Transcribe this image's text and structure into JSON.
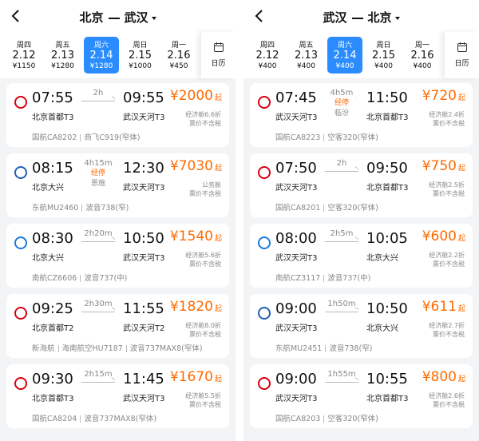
{
  "panels": [
    {
      "route": {
        "from": "北京",
        "to": "武汉"
      },
      "dates": [
        {
          "weekday": "周四",
          "date": "2.12",
          "price": "¥1150"
        },
        {
          "weekday": "周五",
          "date": "2.13",
          "price": "¥1280"
        },
        {
          "weekday": "周六",
          "date": "2.14",
          "price": "¥1280",
          "selected": true
        },
        {
          "weekday": "周日",
          "date": "2.15",
          "price": "¥1000"
        },
        {
          "weekday": "周一",
          "date": "2.16",
          "price": "¥450"
        }
      ],
      "calendar": "日历",
      "flights": [
        {
          "dep_time": "07:55",
          "dep_airport": "北京首都T3",
          "duration": "2h",
          "arr_time": "09:55",
          "arr_airport": "武汉天河T3",
          "price": "¥2000",
          "price_suffix": "起",
          "fare": "经济舱6.6折",
          "tax": "票价不含税",
          "carrier": [
            "国航CA8202",
            "商飞C919(窄体)"
          ]
        },
        {
          "dep_time": "08:15",
          "dep_airport": "北京大兴",
          "duration": "4h15m",
          "stop": "经停",
          "stop_city": "恩施",
          "arr_time": "12:30",
          "arr_airport": "武汉天河T3",
          "price": "¥7030",
          "price_suffix": "起",
          "fare": "公务舱",
          "tax": "票价不含税",
          "carrier": [
            "东航MU2460",
            "波音738(窄)"
          ]
        },
        {
          "dep_time": "08:30",
          "dep_airport": "北京大兴",
          "duration": "2h20m",
          "arr_time": "10:50",
          "arr_airport": "武汉天河T3",
          "price": "¥1540",
          "price_suffix": "起",
          "fare": "经济舱5.6折",
          "tax": "票价不含税",
          "carrier": [
            "南航CZ6606",
            "波音737(中)"
          ]
        },
        {
          "dep_time": "09:25",
          "dep_airport": "北京首都T2",
          "duration": "2h30m",
          "arr_time": "11:55",
          "arr_airport": "武汉天河T2",
          "price": "¥1820",
          "price_suffix": "起",
          "fare": "经济舱8.0折",
          "tax": "票价不含税",
          "carrier": [
            "新海航",
            "海南航空HU7187",
            "波音737MAX8(窄体)"
          ]
        },
        {
          "dep_time": "09:30",
          "dep_airport": "北京首都T3",
          "duration": "2h15m",
          "arr_time": "11:45",
          "arr_airport": "武汉天河T3",
          "price": "¥1670",
          "price_suffix": "起",
          "fare": "经济舱5.5折",
          "tax": "票价不含税",
          "carrier": [
            "国航CA8204",
            "波音737MAX8(窄体)"
          ]
        }
      ]
    },
    {
      "route": {
        "from": "武汉",
        "to": "北京"
      },
      "dates": [
        {
          "weekday": "周四",
          "date": "2.12",
          "price": "¥400"
        },
        {
          "weekday": "周五",
          "date": "2.13",
          "price": "¥400"
        },
        {
          "weekday": "周六",
          "date": "2.14",
          "price": "¥400",
          "selected": true
        },
        {
          "weekday": "周日",
          "date": "2.15",
          "price": "¥400"
        },
        {
          "weekday": "周一",
          "date": "2.16",
          "price": "¥400"
        }
      ],
      "calendar": "日历",
      "flights": [
        {
          "dep_time": "07:45",
          "dep_airport": "武汉天河T3",
          "duration": "4h5m",
          "stop": "经停",
          "stop_city": "临汾",
          "arr_time": "11:50",
          "arr_airport": "北京首都T3",
          "price": "¥720",
          "price_suffix": "起",
          "fare": "经济舱2.4折",
          "tax": "票价不含税",
          "carrier": [
            "国航CA8223",
            "空客320(窄体)"
          ]
        },
        {
          "dep_time": "07:50",
          "dep_airport": "武汉天河T3",
          "duration": "2h",
          "arr_time": "09:50",
          "arr_airport": "北京首都T3",
          "price": "¥750",
          "price_suffix": "起",
          "fare": "经济舱2.5折",
          "tax": "票价不含税",
          "carrier": [
            "国航CA8201",
            "空客320(窄体)"
          ]
        },
        {
          "dep_time": "08:00",
          "dep_airport": "武汉天河T3",
          "duration": "2h5m",
          "arr_time": "10:05",
          "arr_airport": "北京大兴",
          "price": "¥600",
          "price_suffix": "起",
          "fare": "经济舱2.2折",
          "tax": "票价不含税",
          "carrier": [
            "南航CZ3117",
            "波音737(中)"
          ]
        },
        {
          "dep_time": "09:00",
          "dep_airport": "武汉天河T3",
          "duration": "1h50m",
          "arr_time": "10:50",
          "arr_airport": "北京大兴",
          "price": "¥611",
          "price_suffix": "起",
          "fare": "经济舱2.7折",
          "tax": "票价不含税",
          "carrier": [
            "东航MU2451",
            "波音738(窄)"
          ]
        },
        {
          "dep_time": "09:00",
          "dep_airport": "武汉天河T3",
          "duration": "1h55m",
          "arr_time": "10:55",
          "arr_airport": "北京首都T3",
          "price": "¥800",
          "price_suffix": "起",
          "fare": "经济舱2.6折",
          "tax": "票价不含税",
          "carrier": [
            "国航CA8203",
            "空客320(窄体)"
          ]
        }
      ]
    }
  ]
}
